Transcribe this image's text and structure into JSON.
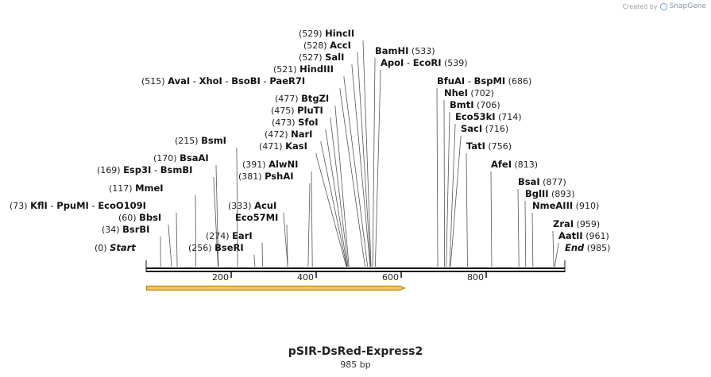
{
  "credit": {
    "prefix": "Created by",
    "brand": "SnapGene"
  },
  "plasmid": {
    "name": "pSIR-DsRed-Express2",
    "length_label": "985 bp",
    "length": 985
  },
  "colors": {
    "feature_fill": "#f7c766",
    "feature_stroke": "#b8860b",
    "line": "#111111",
    "leader": "#555555"
  },
  "ruler": {
    "ticks": [
      {
        "value": 200,
        "label": "200"
      },
      {
        "value": 400,
        "label": "400"
      },
      {
        "value": 600,
        "label": "600"
      },
      {
        "value": 800,
        "label": "800"
      }
    ]
  },
  "feature": {
    "name": "orf-arrow",
    "start": 1,
    "end": 608,
    "direction": "forward"
  },
  "labels": [
    {
      "id": "start",
      "pos": "(0)",
      "site": 0,
      "enzymes": [
        "Start"
      ],
      "italic": true,
      "side": "left"
    },
    {
      "id": "bsrbi",
      "pos": "(34)",
      "site": 34,
      "enzymes": [
        "BsrBI"
      ],
      "side": "left"
    },
    {
      "id": "bbsi",
      "pos": "(60)",
      "site": 60,
      "enzymes": [
        "BbsI"
      ],
      "side": "left"
    },
    {
      "id": "kfli",
      "pos": "(73)",
      "site": 73,
      "enzymes": [
        "KflI",
        "PpuMI",
        "EcoO109I"
      ],
      "side": "left"
    },
    {
      "id": "mmei",
      "pos": "(117)",
      "site": 117,
      "enzymes": [
        "MmeI"
      ],
      "side": "left"
    },
    {
      "id": "esp3i",
      "pos": "(169)",
      "site": 169,
      "enzymes": [
        "Esp3I",
        "BsmBI"
      ],
      "side": "left"
    },
    {
      "id": "bsaai",
      "pos": "(170)",
      "site": 170,
      "enzymes": [
        "BsaAI"
      ],
      "side": "left"
    },
    {
      "id": "bsmi",
      "pos": "(215)",
      "site": 215,
      "enzymes": [
        "BsmI"
      ],
      "side": "left"
    },
    {
      "id": "bseri",
      "pos": "(256)",
      "site": 256,
      "enzymes": [
        "BseRI"
      ],
      "side": "left"
    },
    {
      "id": "eari",
      "pos": "(274)",
      "site": 274,
      "enzymes": [
        "EarI"
      ],
      "side": "left"
    },
    {
      "id": "eco57mi",
      "pos": "",
      "site": 333,
      "enzymes": [
        "Eco57MI"
      ],
      "side": "left"
    },
    {
      "id": "acui",
      "pos": "(333)",
      "site": 333,
      "enzymes": [
        "AcuI"
      ],
      "side": "left"
    },
    {
      "id": "pshai",
      "pos": "(381)",
      "site": 381,
      "enzymes": [
        "PshAI"
      ],
      "side": "left"
    },
    {
      "id": "alwni",
      "pos": "(391)",
      "site": 391,
      "enzymes": [
        "AlwNI"
      ],
      "side": "left"
    },
    {
      "id": "kasi",
      "pos": "(471)",
      "site": 471,
      "enzymes": [
        "KasI"
      ],
      "side": "left"
    },
    {
      "id": "nari",
      "pos": "(472)",
      "site": 472,
      "enzymes": [
        "NarI"
      ],
      "side": "left"
    },
    {
      "id": "sfoi",
      "pos": "(473)",
      "site": 473,
      "enzymes": [
        "SfoI"
      ],
      "side": "left"
    },
    {
      "id": "pluti",
      "pos": "(475)",
      "site": 475,
      "enzymes": [
        "PluTI"
      ],
      "side": "left"
    },
    {
      "id": "btgzi",
      "pos": "(477)",
      "site": 477,
      "enzymes": [
        "BtgZI"
      ],
      "side": "left"
    },
    {
      "id": "avai",
      "pos": "(515)",
      "site": 515,
      "enzymes": [
        "AvaI",
        "XhoI",
        "BsoBI",
        "PaeR7I"
      ],
      "side": "left"
    },
    {
      "id": "hindiii",
      "pos": "(521)",
      "site": 521,
      "enzymes": [
        "HindIII"
      ],
      "side": "left"
    },
    {
      "id": "sali",
      "pos": "(527)",
      "site": 527,
      "enzymes": [
        "SalI"
      ],
      "side": "left"
    },
    {
      "id": "acci",
      "pos": "(528)",
      "site": 528,
      "enzymes": [
        "AccI"
      ],
      "side": "left"
    },
    {
      "id": "hincii",
      "pos": "(529)",
      "site": 529,
      "enzymes": [
        "HincII"
      ],
      "side": "left"
    },
    {
      "id": "bamhi",
      "pos": "(533)",
      "site": 533,
      "enzymes": [
        "BamHI"
      ],
      "side": "right"
    },
    {
      "id": "apoi",
      "pos": "(539)",
      "site": 539,
      "enzymes": [
        "ApoI",
        "EcoRI"
      ],
      "side": "right"
    },
    {
      "id": "bfuai",
      "pos": "(686)",
      "site": 686,
      "enzymes": [
        "BfuAI",
        "BspMI"
      ],
      "side": "right"
    },
    {
      "id": "nhei",
      "pos": "(702)",
      "site": 702,
      "enzymes": [
        "NheI"
      ],
      "side": "right"
    },
    {
      "id": "bmti",
      "pos": "(706)",
      "site": 706,
      "enzymes": [
        "BmtI"
      ],
      "side": "right"
    },
    {
      "id": "eco53ki",
      "pos": "(714)",
      "site": 714,
      "enzymes": [
        "Eco53kI"
      ],
      "side": "right"
    },
    {
      "id": "saci",
      "pos": "(716)",
      "site": 716,
      "enzymes": [
        "SacI"
      ],
      "side": "right"
    },
    {
      "id": "tati",
      "pos": "(756)",
      "site": 756,
      "enzymes": [
        "TatI"
      ],
      "side": "right"
    },
    {
      "id": "afei",
      "pos": "(813)",
      "site": 813,
      "enzymes": [
        "AfeI"
      ],
      "side": "right"
    },
    {
      "id": "bsai",
      "pos": "(877)",
      "site": 877,
      "enzymes": [
        "BsaI"
      ],
      "side": "right"
    },
    {
      "id": "bglii",
      "pos": "(893)",
      "site": 893,
      "enzymes": [
        "BglII"
      ],
      "side": "right"
    },
    {
      "id": "nmeaiii",
      "pos": "(910)",
      "site": 910,
      "enzymes": [
        "NmeAIII"
      ],
      "side": "right"
    },
    {
      "id": "zrai",
      "pos": "(959)",
      "site": 959,
      "enzymes": [
        "ZraI"
      ],
      "side": "right"
    },
    {
      "id": "aatii",
      "pos": "(961)",
      "site": 961,
      "enzymes": [
        "AatII"
      ],
      "side": "right"
    },
    {
      "id": "end",
      "pos": "(985)",
      "site": 985,
      "enzymes": [
        "End"
      ],
      "italic": true,
      "side": "right"
    }
  ]
}
